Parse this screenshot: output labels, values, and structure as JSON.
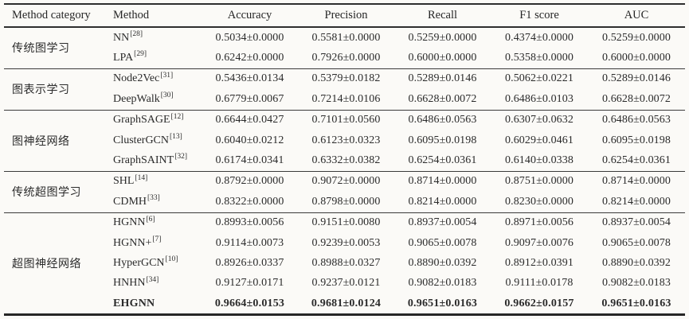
{
  "page": {
    "background": "#fbfaf7",
    "ink_color": "#2b2b2b",
    "rule_color": "#2e2e2e"
  },
  "table": {
    "columns": [
      "Method category",
      "Method",
      "Accuracy",
      "Precision",
      "Recall",
      "F1 score",
      "AUC"
    ],
    "groups": [
      {
        "category": "传统图学习",
        "rows": [
          {
            "method": "NN",
            "ref": "[28]",
            "bold": false,
            "values": [
              "0.5034±0.0000",
              "0.5581±0.0000",
              "0.5259±0.0000",
              "0.4374±0.0000",
              "0.5259±0.0000"
            ]
          },
          {
            "method": "LPA",
            "ref": "[29]",
            "bold": false,
            "values": [
              "0.6242±0.0000",
              "0.7926±0.0000",
              "0.6000±0.0000",
              "0.5358±0.0000",
              "0.6000±0.0000"
            ]
          }
        ]
      },
      {
        "category": "图表示学习",
        "rows": [
          {
            "method": "Node2Vec",
            "ref": "[31]",
            "bold": false,
            "values": [
              "0.5436±0.0134",
              "0.5379±0.0182",
              "0.5289±0.0146",
              "0.5062±0.0221",
              "0.5289±0.0146"
            ]
          },
          {
            "method": "DeepWalk",
            "ref": "[30]",
            "bold": false,
            "values": [
              "0.6779±0.0067",
              "0.7214±0.0106",
              "0.6628±0.0072",
              "0.6486±0.0103",
              "0.6628±0.0072"
            ]
          }
        ]
      },
      {
        "category": "图神经网络",
        "rows": [
          {
            "method": "GraphSAGE",
            "ref": "[12]",
            "bold": false,
            "values": [
              "0.6644±0.0427",
              "0.7101±0.0560",
              "0.6486±0.0563",
              "0.6307±0.0632",
              "0.6486±0.0563"
            ]
          },
          {
            "method": "ClusterGCN",
            "ref": "[13]",
            "bold": false,
            "values": [
              "0.6040±0.0212",
              "0.6123±0.0323",
              "0.6095±0.0198",
              "0.6029±0.0461",
              "0.6095±0.0198"
            ]
          },
          {
            "method": "GraphSAINT",
            "ref": "[32]",
            "bold": false,
            "values": [
              "0.6174±0.0341",
              "0.6332±0.0382",
              "0.6254±0.0361",
              "0.6140±0.0338",
              "0.6254±0.0361"
            ]
          }
        ]
      },
      {
        "category": "传统超图学习",
        "rows": [
          {
            "method": "SHL",
            "ref": "[14]",
            "bold": false,
            "values": [
              "0.8792±0.0000",
              "0.9072±0.0000",
              "0.8714±0.0000",
              "0.8751±0.0000",
              "0.8714±0.0000"
            ]
          },
          {
            "method": "CDMH",
            "ref": "[33]",
            "bold": false,
            "values": [
              "0.8322±0.0000",
              "0.8798±0.0000",
              "0.8214±0.0000",
              "0.8230±0.0000",
              "0.8214±0.0000"
            ]
          }
        ]
      },
      {
        "category": "超图神经网络",
        "rows": [
          {
            "method": "HGNN",
            "ref": "[6]",
            "bold": false,
            "values": [
              "0.8993±0.0056",
              "0.9151±0.0080",
              "0.8937±0.0054",
              "0.8971±0.0056",
              "0.8937±0.0054"
            ]
          },
          {
            "method": "HGNN+",
            "ref": "[7]",
            "bold": false,
            "values": [
              "0.9114±0.0073",
              "0.9239±0.0053",
              "0.9065±0.0078",
              "0.9097±0.0076",
              "0.9065±0.0078"
            ]
          },
          {
            "method": "HyperGCN",
            "ref": "[10]",
            "bold": false,
            "values": [
              "0.8926±0.0337",
              "0.8988±0.0327",
              "0.8890±0.0392",
              "0.8912±0.0391",
              "0.8890±0.0392"
            ]
          },
          {
            "method": "HNHN",
            "ref": "[34]",
            "bold": false,
            "values": [
              "0.9127±0.0171",
              "0.9237±0.0121",
              "0.9082±0.0183",
              "0.9111±0.0178",
              "0.9082±0.0183"
            ]
          },
          {
            "method": "EHGNN",
            "ref": "",
            "bold": true,
            "values": [
              "0.9664±0.0153",
              "0.9681±0.0124",
              "0.9651±0.0163",
              "0.9662±0.0157",
              "0.9651±0.0163"
            ]
          }
        ]
      }
    ]
  }
}
